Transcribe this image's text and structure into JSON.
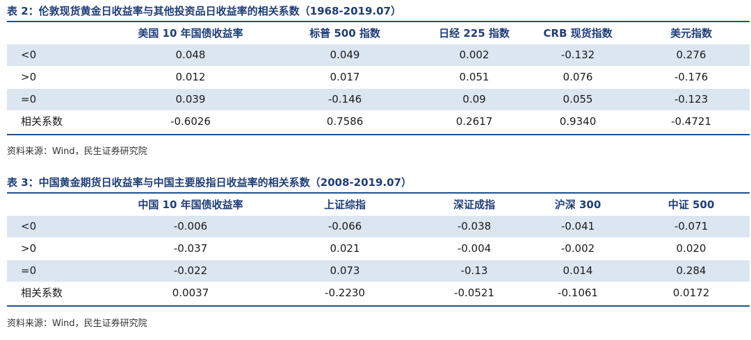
{
  "table2": {
    "title": "表 2：伦敦现货黄金日收益率与其他投资品日收益率的相关系数（1968-2019.07）",
    "headers": [
      "",
      "美国 10 年国债收益率",
      "标普 500 指数",
      "日经 225 指数",
      "CRB 现货指数",
      "美元指数"
    ],
    "rows": [
      [
        "<0",
        "0.048",
        "0.049",
        "0.002",
        "-0.132",
        "0.276"
      ],
      [
        ">0",
        "0.012",
        "0.017",
        "0.051",
        "0.076",
        "-0.176"
      ],
      [
        "=0",
        "0.039",
        "-0.146",
        "0.09",
        "0.055",
        "-0.123"
      ],
      [
        "相关系数",
        "-0.6026",
        "0.7586",
        "0.2617",
        "0.9340",
        "-0.4721"
      ]
    ],
    "source": "资料来源：Wind，民生证券研究院"
  },
  "table3": {
    "title": "表 3：中国黄金期货日收益率与中国主要股指日收益率的相关系数（2008-2019.07）",
    "headers": [
      "",
      "中国 10 年国债收益率",
      "上证综指",
      "深证成指",
      "沪深 300",
      "中证 500"
    ],
    "rows": [
      [
        "<0",
        "-0.006",
        "-0.066",
        "-0.038",
        "-0.041",
        "-0.071"
      ],
      [
        ">0",
        "-0.037",
        "0.021",
        "-0.004",
        "-0.002",
        "0.020"
      ],
      [
        "=0",
        "-0.022",
        "0.073",
        "-0.13",
        "0.014",
        "0.284"
      ],
      [
        "相关系数",
        "0.0037",
        "-0.2230",
        "-0.0521",
        "-0.1061",
        "0.0172"
      ]
    ],
    "source": "资料来源：Wind，民生证券研究院"
  },
  "colors": {
    "title": "#1f3d78",
    "rule": "#1f4e8c",
    "shade": "#dce6f1"
  }
}
